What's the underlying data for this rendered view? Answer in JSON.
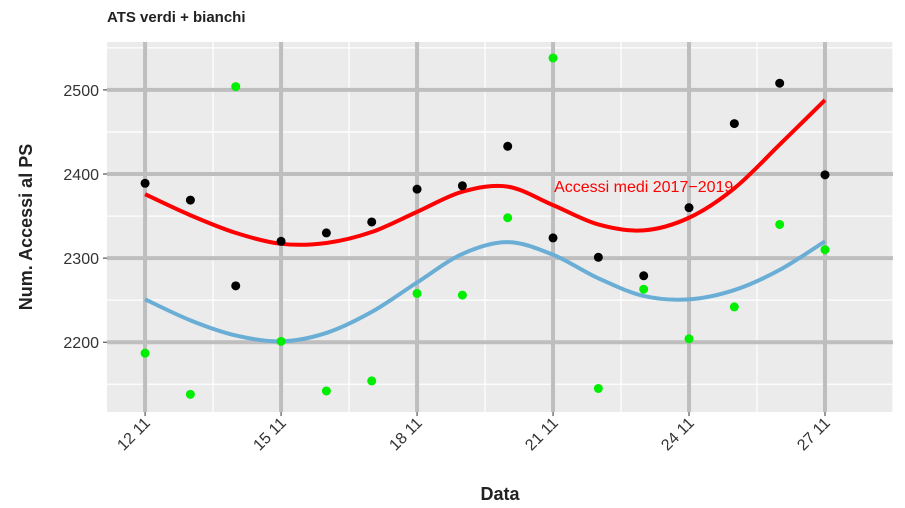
{
  "chart_data": {
    "type": "scatter",
    "title": "ATS verdi + bianchi",
    "x_label": "Data",
    "y_label": "Num. Accessi al PS",
    "xlim": [
      11.16,
      28.5
    ],
    "ylim": [
      2117,
      2557
    ],
    "xticks": [
      {
        "value": 12,
        "label": "12 11"
      },
      {
        "value": 15,
        "label": "15 11"
      },
      {
        "value": 18,
        "label": "18 11"
      },
      {
        "value": 21,
        "label": "21 11"
      },
      {
        "value": 24,
        "label": "24 11"
      },
      {
        "value": 27,
        "label": "27 11"
      }
    ],
    "yticks": [
      2200,
      2300,
      2400,
      2500
    ],
    "grid": true,
    "x": [
      12,
      13,
      14,
      15,
      16,
      17,
      18,
      19,
      20,
      21,
      22,
      23,
      24,
      25,
      26,
      27
    ],
    "series": [
      {
        "mode": "markers",
        "color": "#000000",
        "values": [
          2389,
          2369,
          2267,
          2320,
          2330,
          2343,
          2382,
          2386,
          2433,
          2324,
          2301,
          2279,
          2360,
          2460,
          2508,
          2399
        ]
      },
      {
        "mode": "markers",
        "color": "#00ee00",
        "values": [
          2187,
          2138,
          2504,
          2201,
          2142,
          2154,
          2258,
          2256,
          2348,
          2538,
          2145,
          2263,
          2204,
          2242,
          2340,
          2310
        ]
      },
      {
        "mode": "lines",
        "color": "#ff0000",
        "values": [
          2376,
          2351,
          2330,
          2317,
          2318,
          2331,
          2355,
          2379,
          2385,
          2363,
          2340,
          2333,
          2348,
          2383,
          2435,
          2488
        ]
      },
      {
        "mode": "lines",
        "color": "#6aaed6",
        "values": [
          2251,
          2226,
          2208,
          2201,
          2211,
          2236,
          2271,
          2305,
          2319,
          2304,
          2276,
          2255,
          2251,
          2262,
          2286,
          2320
        ]
      }
    ],
    "annotation": {
      "text": "Accessi medi 2017−2019",
      "x": 23,
      "y": 2386,
      "color": "#ff0000"
    }
  }
}
